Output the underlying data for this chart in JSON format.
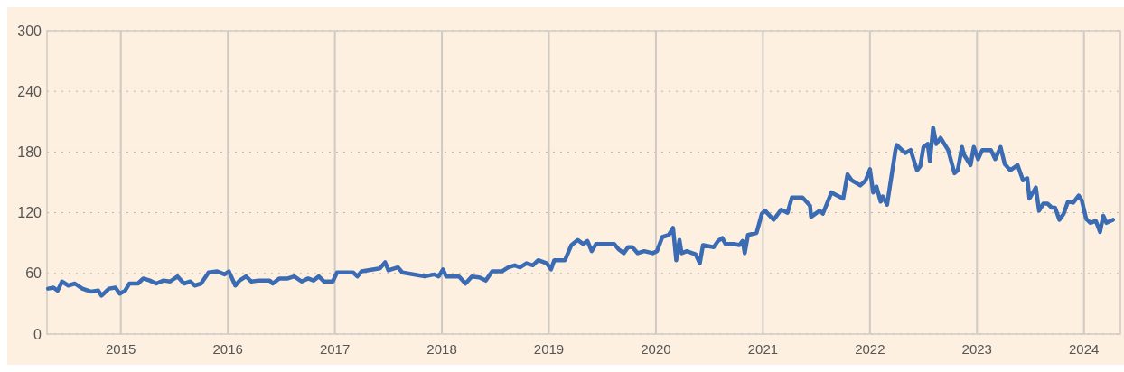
{
  "chart_data": {
    "type": "line",
    "xlim": [
      2014.31,
      2024.34
    ],
    "ylim": [
      0,
      300
    ],
    "xticks": [
      2015,
      2016,
      2017,
      2018,
      2019,
      2020,
      2021,
      2022,
      2023,
      2024
    ],
    "yticks": [
      0,
      60,
      120,
      180,
      240,
      300
    ],
    "grid": true,
    "marker": "none",
    "line_style": "solid",
    "series": [
      {
        "color": "#3a6bb3",
        "x": [
          2014.32,
          2014.37,
          2014.41,
          2014.45,
          2014.51,
          2014.57,
          2014.64,
          2014.72,
          2014.79,
          2014.82,
          2014.89,
          2014.95,
          2014.99,
          2015.04,
          2015.08,
          2015.16,
          2015.21,
          2015.27,
          2015.33,
          2015.4,
          2015.46,
          2015.53,
          2015.59,
          2015.65,
          2015.69,
          2015.75,
          2015.82,
          2015.9,
          2015.97,
          2016.01,
          2016.07,
          2016.11,
          2016.17,
          2016.22,
          2016.29,
          2016.39,
          2016.42,
          2016.48,
          2016.56,
          2016.62,
          2016.69,
          2016.75,
          2016.8,
          2016.85,
          2016.9,
          2016.98,
          2017.02,
          2017.17,
          2017.21,
          2017.25,
          2017.42,
          2017.47,
          2017.5,
          2017.56,
          2017.59,
          2017.63,
          2017.74,
          2017.84,
          2017.93,
          2017.97,
          2018.01,
          2018.04,
          2018.16,
          2018.22,
          2018.28,
          2018.35,
          2018.41,
          2018.47,
          2018.56,
          2018.62,
          2018.68,
          2018.73,
          2018.79,
          2018.85,
          2018.9,
          2018.98,
          2019.02,
          2019.05,
          2019.15,
          2019.21,
          2019.27,
          2019.32,
          2019.36,
          2019.4,
          2019.44,
          2019.61,
          2019.65,
          2019.7,
          2019.74,
          2019.78,
          2019.83,
          2019.89,
          2019.97,
          2020.01,
          2020.06,
          2020.12,
          2020.16,
          2020.19,
          2020.22,
          2020.24,
          2020.29,
          2020.37,
          2020.41,
          2020.44,
          2020.54,
          2020.58,
          2020.62,
          2020.65,
          2020.73,
          2020.78,
          2020.81,
          2020.83,
          2020.86,
          2020.94,
          2020.99,
          2021.02,
          2021.1,
          2021.17,
          2021.23,
          2021.27,
          2021.37,
          2021.44,
          2021.45,
          2021.53,
          2021.56,
          2021.64,
          2021.75,
          2021.79,
          2021.83,
          2021.91,
          2021.96,
          2022.0,
          2022.03,
          2022.06,
          2022.1,
          2022.12,
          2022.16,
          2022.24,
          2022.25,
          2022.33,
          2022.38,
          2022.44,
          2022.47,
          2022.5,
          2022.54,
          2022.56,
          2022.59,
          2022.62,
          2022.66,
          2022.73,
          2022.79,
          2022.82,
          2022.86,
          2022.88,
          2022.94,
          2022.97,
          2023.01,
          2023.05,
          2023.13,
          2023.17,
          2023.22,
          2023.26,
          2023.31,
          2023.38,
          2023.43,
          2023.47,
          2023.49,
          2023.55,
          2023.58,
          2023.62,
          2023.66,
          2023.7,
          2023.73,
          2023.77,
          2023.81,
          2023.85,
          2023.9,
          2023.95,
          2023.98,
          2024.02,
          2024.06,
          2024.11,
          2024.15,
          2024.18,
          2024.21,
          2024.27
        ],
        "values": [
          45,
          46,
          43,
          52,
          48,
          50,
          45,
          42,
          43,
          38,
          45,
          46,
          40,
          43,
          50,
          50,
          55,
          53,
          50,
          53,
          52,
          57,
          50,
          52,
          48,
          50,
          61,
          62,
          59,
          62,
          48,
          53,
          57,
          52,
          53,
          53,
          50,
          55,
          55,
          57,
          52,
          55,
          53,
          57,
          52,
          52,
          61,
          61,
          57,
          62,
          65,
          71,
          63,
          65,
          66,
          61,
          59,
          57,
          59,
          57,
          64,
          57,
          57,
          50,
          57,
          56,
          53,
          62,
          62,
          66,
          68,
          66,
          70,
          68,
          73,
          70,
          64,
          73,
          73,
          88,
          93,
          89,
          92,
          82,
          89,
          89,
          84,
          80,
          86,
          86,
          80,
          82,
          80,
          82,
          96,
          98,
          105,
          73,
          93,
          80,
          82,
          79,
          70,
          88,
          86,
          92,
          95,
          89,
          89,
          88,
          92,
          80,
          98,
          100,
          119,
          122,
          113,
          123,
          120,
          135,
          135,
          127,
          116,
          122,
          119,
          140,
          134,
          158,
          152,
          147,
          152,
          163,
          140,
          146,
          131,
          136,
          128,
          183,
          187,
          179,
          182,
          162,
          166,
          185,
          188,
          171,
          204,
          188,
          194,
          182,
          159,
          162,
          185,
          177,
          167,
          185,
          173,
          182,
          182,
          173,
          185,
          168,
          162,
          167,
          152,
          154,
          134,
          145,
          122,
          129,
          129,
          125,
          125,
          113,
          119,
          131,
          130,
          137,
          132,
          114,
          110,
          112,
          101,
          117,
          110,
          113
        ]
      }
    ]
  }
}
